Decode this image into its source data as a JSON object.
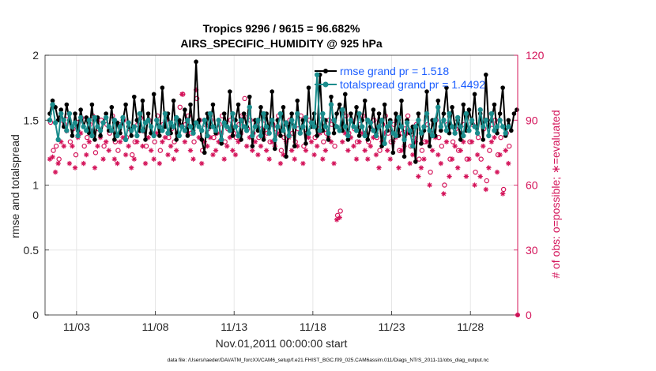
{
  "chart_data": {
    "type": "line",
    "title_line1": "Tropics 9296 / 9615 = 96.682%",
    "title_line2": "AIRS_SPECIFIC_HUMIDITY @ 925 hPa",
    "xlabel": "Nov.01,2011 00:00:00 start",
    "ylabel_left": "rmse and totalspread",
    "ylabel_right": "# of obs: o=possible; ∗=evaluated",
    "xlim": [
      0,
      30
    ],
    "ylim_left": [
      0,
      2
    ],
    "ylim_right": [
      0,
      120
    ],
    "x_ticks": [
      2,
      7,
      12,
      17,
      22,
      27
    ],
    "x_tick_labels": [
      "11/03",
      "11/08",
      "11/13",
      "11/18",
      "11/23",
      "11/28"
    ],
    "y_ticks_left": [
      0,
      0.5,
      1,
      1.5,
      2
    ],
    "y_tick_labels_left": [
      "0",
      "0.5",
      "1",
      "1.5",
      "2"
    ],
    "y_ticks_right": [
      0,
      30,
      60,
      90,
      120
    ],
    "y_tick_labels_right": [
      "0",
      "30",
      "60",
      "90",
      "120"
    ],
    "colors": {
      "rmse": "#000000",
      "spread": "#1a8c8c",
      "obs": "#d4145a",
      "legend_text": "#1a5cff",
      "grid": "#e6e6e6"
    },
    "series": [
      {
        "name": "rmse grand pr = 1.518",
        "values": [
          1.55,
          1.65,
          1.6,
          1.5,
          1.58,
          1.45,
          1.62,
          1.5,
          1.38,
          1.55,
          1.42,
          1.58,
          1.45,
          1.52,
          1.4,
          1.62,
          1.35,
          1.52,
          1.38,
          1.48,
          1.55,
          1.42,
          1.6,
          1.35,
          1.48,
          1.4,
          1.5,
          1.62,
          1.45,
          1.38,
          1.68,
          1.5,
          1.42,
          1.65,
          1.35,
          1.55,
          1.4,
          1.7,
          1.5,
          1.38,
          1.75,
          1.45,
          1.55,
          1.4,
          1.65,
          1.35,
          1.5,
          1.45,
          1.58,
          1.38,
          1.62,
          1.42,
          1.95,
          1.5,
          1.35,
          1.25,
          1.55,
          1.45,
          1.62,
          1.4,
          1.5,
          1.32,
          1.55,
          1.45,
          1.72,
          1.38,
          1.5,
          1.62,
          1.35,
          1.55,
          1.45,
          1.68,
          1.3,
          1.5,
          1.42,
          1.6,
          1.35,
          1.55,
          1.4,
          1.72,
          1.28,
          1.5,
          1.38,
          1.6,
          1.22,
          1.45,
          1.55,
          1.3,
          1.65,
          1.4,
          1.5,
          1.32,
          1.75,
          1.45,
          1.55,
          1.38,
          1.85,
          1.42,
          1.5,
          1.35,
          1.68,
          1.4,
          1.55,
          1.62,
          1.42,
          1.7,
          1.35,
          1.55,
          1.45,
          1.6,
          1.38,
          1.5,
          1.65,
          1.35,
          1.45,
          1.58,
          1.4,
          1.55,
          1.3,
          1.62,
          1.42,
          1.5,
          1.25,
          1.55,
          1.38,
          1.65,
          1.22,
          1.5,
          1.4,
          1.45,
          1.18,
          1.55,
          1.32,
          1.42,
          1.72,
          1.3,
          1.5,
          1.38,
          1.65,
          1.42,
          1.55,
          1.75,
          1.4,
          1.6,
          1.45,
          1.5,
          1.35,
          1.62,
          1.42,
          1.58,
          1.48,
          1.7,
          1.4,
          1.55,
          1.35,
          1.85,
          1.45,
          1.5,
          1.62,
          1.4,
          1.55,
          1.75,
          1.38,
          1.5,
          1.42,
          1.55,
          1.58
        ],
        "x_step": 0.1786
      },
      {
        "name": "totalspread grand pr = 1.4492",
        "values": [
          1.5,
          1.62,
          1.48,
          1.35,
          1.55,
          1.5,
          1.42,
          1.55,
          1.45,
          1.48,
          1.38,
          1.52,
          1.45,
          1.42,
          1.5,
          1.38,
          1.52,
          1.45,
          1.42,
          1.48,
          1.52,
          1.45,
          1.42,
          1.5,
          1.38,
          1.45,
          1.52,
          1.35,
          1.48,
          1.42,
          1.45,
          1.38,
          1.55,
          1.42,
          1.48,
          1.5,
          1.45,
          1.38,
          1.5,
          1.45,
          1.42,
          1.55,
          1.4,
          1.48,
          1.45,
          1.52,
          1.38,
          1.45,
          1.42,
          1.5,
          1.45,
          1.4,
          1.48,
          1.45,
          1.42,
          1.5,
          1.38,
          1.55,
          1.45,
          1.42,
          1.5,
          1.35,
          1.48,
          1.45,
          1.42,
          1.55,
          1.45,
          1.38,
          1.5,
          1.45,
          1.42,
          1.6,
          1.38,
          1.45,
          1.5,
          1.38,
          1.55,
          1.45,
          1.4,
          1.5,
          1.35,
          1.45,
          1.55,
          1.42,
          1.48,
          1.38,
          1.5,
          1.45,
          1.55,
          1.4,
          1.45,
          1.52,
          1.4,
          1.48,
          1.45,
          1.85,
          1.42,
          1.55,
          1.45,
          1.4,
          1.62,
          1.5,
          1.45,
          1.42,
          1.58,
          1.45,
          1.38,
          1.5,
          1.45,
          1.42,
          1.55,
          1.45,
          1.38,
          1.5,
          1.48,
          1.42,
          1.38,
          1.45,
          1.5,
          1.32,
          1.45,
          1.48,
          1.4,
          1.38,
          1.52,
          1.45,
          1.35,
          1.48,
          1.42,
          1.3,
          1.45,
          1.5,
          1.4,
          1.45,
          1.55,
          1.42,
          1.38,
          1.5,
          1.6,
          1.45,
          1.5,
          1.42,
          1.55,
          1.45,
          1.4,
          1.52,
          1.45,
          1.38,
          1.55,
          1.42,
          1.5,
          1.45,
          1.4,
          1.58,
          1.45,
          1.5,
          1.38,
          1.55,
          1.42,
          1.45,
          1.5,
          1.45,
          1.4,
          1.45
        ],
        "x_step": 0.1786
      }
    ],
    "obs_possible": {
      "values": [
        89,
        76,
        78,
        72,
        90,
        88,
        92,
        80,
        86,
        74,
        89,
        91,
        78,
        82,
        88,
        92,
        75,
        86,
        90,
        78,
        88,
        84,
        92,
        80,
        76,
        88,
        90,
        82,
        86,
        74,
        80,
        88,
        91,
        85,
        78,
        90,
        84,
        80,
        92,
        76,
        88,
        90,
        82,
        86,
        80,
        84,
        96,
        102,
        88,
        92,
        84,
        80,
        100,
        90,
        76,
        88,
        86,
        90,
        82,
        84,
        88,
        92,
        80,
        86,
        90,
        84,
        82,
        88,
        92,
        100,
        86,
        90,
        84,
        88,
        82,
        86,
        90,
        84,
        80,
        88,
        86,
        92,
        76,
        82,
        88,
        90,
        84,
        80,
        86,
        92,
        78,
        84,
        90,
        88,
        82,
        86,
        92,
        80,
        84,
        90,
        88,
        78,
        46,
        48,
        88,
        92,
        84,
        90,
        86,
        80,
        88,
        92,
        84,
        80,
        86,
        90,
        82,
        76,
        88,
        92,
        84,
        80,
        88,
        90,
        76,
        84,
        86,
        92,
        78,
        82,
        88,
        72,
        76,
        80,
        88,
        66,
        84,
        90,
        82,
        78,
        60,
        88,
        72,
        80,
        86,
        76,
        84,
        88,
        72,
        80,
        88,
        66,
        82,
        72,
        86,
        62,
        76,
        88,
        90,
        74,
        82,
        58,
        84,
        78
      ],
      "x_step": 0.1786
    },
    "obs_evaluated": {
      "values": [
        72,
        73,
        66,
        70,
        80,
        78,
        85,
        70,
        78,
        68,
        82,
        84,
        70,
        74,
        80,
        85,
        68,
        78,
        82,
        72,
        80,
        76,
        85,
        72,
        70,
        80,
        82,
        74,
        78,
        68,
        72,
        80,
        85,
        78,
        70,
        82,
        76,
        72,
        84,
        70,
        80,
        82,
        74,
        78,
        72,
        76,
        88,
        102,
        80,
        84,
        76,
        72,
        104,
        82,
        70,
        80,
        78,
        82,
        74,
        76,
        80,
        84,
        72,
        78,
        82,
        76,
        74,
        80,
        84,
        92,
        78,
        82,
        76,
        80,
        74,
        78,
        82,
        76,
        72,
        80,
        78,
        84,
        70,
        74,
        80,
        82,
        76,
        72,
        78,
        84,
        70,
        76,
        82,
        80,
        74,
        78,
        84,
        72,
        76,
        82,
        80,
        70,
        44,
        45,
        80,
        84,
        76,
        82,
        78,
        72,
        80,
        84,
        76,
        72,
        78,
        82,
        74,
        68,
        80,
        84,
        76,
        72,
        80,
        82,
        68,
        76,
        78,
        84,
        70,
        74,
        80,
        64,
        68,
        72,
        80,
        60,
        76,
        82,
        74,
        70,
        56,
        80,
        64,
        72,
        78,
        68,
        76,
        80,
        64,
        72,
        80,
        60,
        74,
        64,
        78,
        58,
        68,
        80,
        82,
        66,
        74,
        56,
        76,
        70
      ],
      "x_step": 0.1786
    },
    "last_point": {
      "x": 30,
      "y_right": 0
    }
  },
  "footer": "data file: /Users/raeder/DAI/ATM_forcXX/CAM6_setup/f.e21.FHIST_BGC.f09_025.CAM6assim.011/Diags_NTrS_2011-11/obs_diag_output.nc"
}
